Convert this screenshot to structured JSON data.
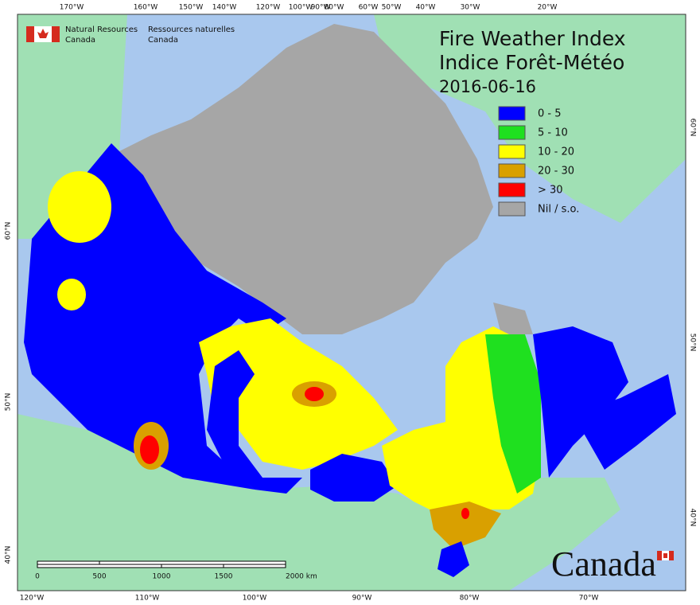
{
  "header": {
    "org_en": [
      "Natural Resources",
      "Canada"
    ],
    "org_fr": [
      "Ressources naturelles",
      "Canada"
    ]
  },
  "title": {
    "line1": "Fire Weather Index",
    "line2": "Indice Forêt-Météo",
    "date": "2016-06-16"
  },
  "legend": [
    {
      "label": "0 - 5",
      "color": "#0000ff"
    },
    {
      "label": "5 - 10",
      "color": "#1fe01f"
    },
    {
      "label": "10 - 20",
      "color": "#ffff00"
    },
    {
      "label": "20 - 30",
      "color": "#d9a000"
    },
    {
      "label": "> 30",
      "color": "#ff0000"
    },
    {
      "label": "Nil / s.o.",
      "color": "#a6a6a6"
    }
  ],
  "graticule": {
    "top": [
      "170°W",
      "160°W",
      "150°W",
      "140°W",
      "120°W",
      "100°W",
      "90°W",
      "80°W",
      "60°W",
      "50°W",
      "40°W",
      "30°W",
      "20°W"
    ],
    "bottom": [
      "120°W",
      "110°W",
      "100°W",
      "90°W",
      "80°W",
      "70°W"
    ],
    "left": [
      "60°N",
      "50°N",
      "40°N"
    ],
    "right": [
      "60°N",
      "50°N",
      "40°N"
    ]
  },
  "scale_bar": {
    "labels": [
      "0",
      "500",
      "1000",
      "1500",
      "2000 km"
    ]
  },
  "wordmark": "Canada"
}
